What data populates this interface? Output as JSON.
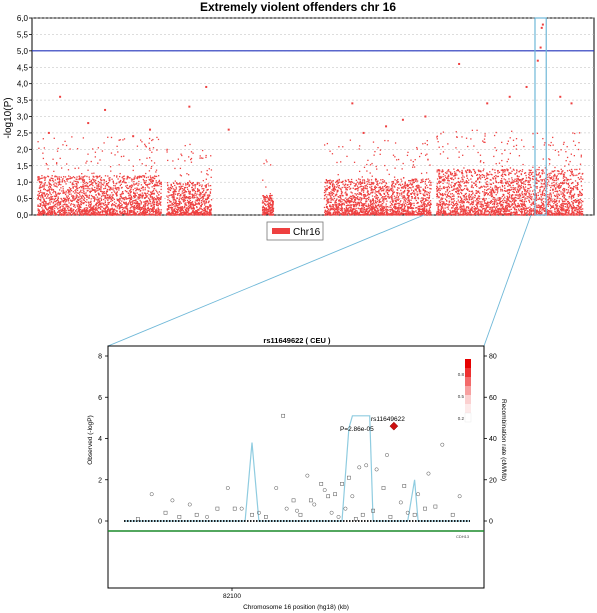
{
  "chart_data": [
    {
      "type": "scatter",
      "title": "Extremely violent offenders chr 16",
      "ylabel": "-log10(P)",
      "xlabel": "",
      "ylim": [
        0.0,
        6.0
      ],
      "y_ticks": [
        "0,0",
        "0,5",
        "1,0",
        "1,5",
        "2,0",
        "2,5",
        "3,0",
        "3,5",
        "4,0",
        "4,5",
        "5,0",
        "5,5",
        "6,0"
      ],
      "significance_line": 5.0,
      "legend": {
        "label": "Chr16",
        "placement": "bottom-center"
      },
      "grid": true,
      "colors": {
        "points": "#ee4040",
        "threshold": "#2233bb",
        "highlight": "#6fb8d8"
      },
      "x_range": [
        0,
        100
      ],
      "segments": [
        {
          "x_start": 1,
          "x_end": 23,
          "typical_max": 1.2
        },
        {
          "x_start": 24,
          "x_end": 32,
          "typical_max": 1.0
        },
        {
          "x_start": 41,
          "x_end": 43,
          "typical_max": 0.6
        },
        {
          "x_start": 52,
          "x_end": 71,
          "typical_max": 1.1
        },
        {
          "x_start": 72,
          "x_end": 98,
          "typical_max": 1.4
        }
      ],
      "peaks": [
        {
          "x": 5,
          "y": 3.6
        },
        {
          "x": 3,
          "y": 2.5
        },
        {
          "x": 10,
          "y": 2.8
        },
        {
          "x": 13,
          "y": 3.2
        },
        {
          "x": 18,
          "y": 2.4
        },
        {
          "x": 21,
          "y": 2.6
        },
        {
          "x": 28,
          "y": 3.3
        },
        {
          "x": 31,
          "y": 3.9
        },
        {
          "x": 35,
          "y": 2.6
        },
        {
          "x": 57,
          "y": 3.4
        },
        {
          "x": 59,
          "y": 2.5
        },
        {
          "x": 63,
          "y": 2.7
        },
        {
          "x": 66,
          "y": 2.9
        },
        {
          "x": 70,
          "y": 3.0
        },
        {
          "x": 76,
          "y": 4.6
        },
        {
          "x": 81,
          "y": 3.4
        },
        {
          "x": 85,
          "y": 3.6
        },
        {
          "x": 88,
          "y": 3.9
        },
        {
          "x": 90,
          "y": 4.7
        },
        {
          "x": 90.5,
          "y": 5.1
        },
        {
          "x": 90.7,
          "y": 5.7
        },
        {
          "x": 90.9,
          "y": 5.8
        },
        {
          "x": 94,
          "y": 3.6
        },
        {
          "x": 96,
          "y": 3.4
        }
      ],
      "highlight_region": {
        "x_start": 89.5,
        "x_end": 91.5
      }
    },
    {
      "type": "scatter",
      "title": "rs11649622 ( CEU )",
      "xlabel": "Chromosome 16 position (hg18) (kb)",
      "ylabel": "Observed (-logP)",
      "ylabel_right": "Recombination rate (cM/Mb)",
      "ylim": [
        0,
        8
      ],
      "y_ticks": [
        "0",
        "2",
        "4",
        "6",
        "8"
      ],
      "ylim_right": [
        0,
        80
      ],
      "y_ticks_right": [
        "0",
        "20",
        "40",
        "60",
        "80"
      ],
      "x_ticks": [
        "82100"
      ],
      "x_range": [
        0,
        100
      ],
      "top_snp": {
        "name": "rs11649622",
        "pvalue_label": "P=2.86e-05",
        "x": 78,
        "y": 4.6
      },
      "gene_label": "CDH13",
      "r2_legend": [
        "0.8",
        "0.5",
        "0.2"
      ],
      "points": [
        {
          "x": 4,
          "y": 0.1
        },
        {
          "x": 8,
          "y": 1.3
        },
        {
          "x": 12,
          "y": 0.4
        },
        {
          "x": 14,
          "y": 1.0
        },
        {
          "x": 16,
          "y": 0.2
        },
        {
          "x": 19,
          "y": 0.8
        },
        {
          "x": 21,
          "y": 0.3
        },
        {
          "x": 24,
          "y": 0.2
        },
        {
          "x": 27,
          "y": 0.6
        },
        {
          "x": 30,
          "y": 1.6
        },
        {
          "x": 32,
          "y": 0.6
        },
        {
          "x": 34,
          "y": 0.6
        },
        {
          "x": 37,
          "y": 0.3
        },
        {
          "x": 39,
          "y": 0.4
        },
        {
          "x": 41,
          "y": 0.2
        },
        {
          "x": 44,
          "y": 1.6
        },
        {
          "x": 46,
          "y": 5.1
        },
        {
          "x": 47,
          "y": 0.6
        },
        {
          "x": 49,
          "y": 1.0
        },
        {
          "x": 50,
          "y": 0.5
        },
        {
          "x": 51,
          "y": 0.3
        },
        {
          "x": 53,
          "y": 2.2
        },
        {
          "x": 54,
          "y": 1.0
        },
        {
          "x": 55,
          "y": 0.8
        },
        {
          "x": 57,
          "y": 1.8
        },
        {
          "x": 58,
          "y": 1.5
        },
        {
          "x": 59,
          "y": 1.2
        },
        {
          "x": 60,
          "y": 0.4
        },
        {
          "x": 61,
          "y": 1.3
        },
        {
          "x": 62,
          "y": 0.2
        },
        {
          "x": 63,
          "y": 1.8
        },
        {
          "x": 64,
          "y": 0.6
        },
        {
          "x": 65,
          "y": 2.1
        },
        {
          "x": 66,
          "y": 1.2
        },
        {
          "x": 67,
          "y": 0.1
        },
        {
          "x": 68,
          "y": 2.6
        },
        {
          "x": 69,
          "y": 0.3
        },
        {
          "x": 70,
          "y": 2.7
        },
        {
          "x": 72,
          "y": 0.5
        },
        {
          "x": 73,
          "y": 2.5
        },
        {
          "x": 75,
          "y": 1.6
        },
        {
          "x": 76,
          "y": 3.2
        },
        {
          "x": 77,
          "y": 0.2
        },
        {
          "x": 80,
          "y": 0.9
        },
        {
          "x": 81,
          "y": 1.7
        },
        {
          "x": 82,
          "y": 0.4
        },
        {
          "x": 84,
          "y": 0.3
        },
        {
          "x": 85,
          "y": 1.3
        },
        {
          "x": 87,
          "y": 0.6
        },
        {
          "x": 88,
          "y": 2.3
        },
        {
          "x": 90,
          "y": 0.7
        },
        {
          "x": 92,
          "y": 3.7
        },
        {
          "x": 95,
          "y": 0.3
        },
        {
          "x": 97,
          "y": 1.2
        }
      ],
      "recombination": [
        [
          0,
          0
        ],
        [
          35,
          0
        ],
        [
          37,
          38
        ],
        [
          39,
          0
        ],
        [
          63,
          0
        ],
        [
          65,
          45
        ],
        [
          66,
          51
        ],
        [
          71,
          51
        ],
        [
          72,
          0
        ],
        [
          82,
          0
        ],
        [
          84,
          20
        ],
        [
          85,
          0
        ],
        [
          100,
          0
        ]
      ]
    }
  ]
}
